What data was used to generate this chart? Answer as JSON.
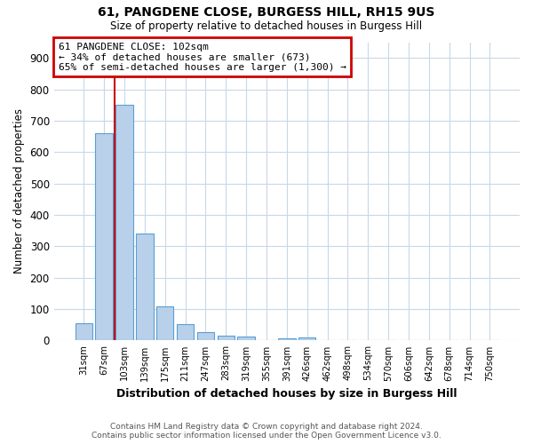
{
  "title": "61, PANGDENE CLOSE, BURGESS HILL, RH15 9US",
  "subtitle": "Size of property relative to detached houses in Burgess Hill",
  "xlabel": "Distribution of detached houses by size in Burgess Hill",
  "ylabel": "Number of detached properties",
  "footer_line1": "Contains HM Land Registry data © Crown copyright and database right 2024.",
  "footer_line2": "Contains public sector information licensed under the Open Government Licence v3.0.",
  "bar_labels": [
    "31sqm",
    "67sqm",
    "103sqm",
    "139sqm",
    "175sqm",
    "211sqm",
    "247sqm",
    "283sqm",
    "319sqm",
    "355sqm",
    "391sqm",
    "426sqm",
    "462sqm",
    "498sqm",
    "534sqm",
    "570sqm",
    "606sqm",
    "642sqm",
    "678sqm",
    "714sqm",
    "750sqm"
  ],
  "bar_values": [
    55,
    660,
    750,
    340,
    110,
    52,
    27,
    15,
    12,
    0,
    8,
    10,
    0,
    0,
    0,
    0,
    0,
    0,
    0,
    0,
    0
  ],
  "bar_color": "#b8d0ea",
  "bar_edge_color": "#5a9fd4",
  "bar_linewidth": 0.8,
  "property_line_x": 1.5,
  "property_line_color": "#cc0000",
  "ylim": [
    0,
    950
  ],
  "yticks": [
    0,
    100,
    200,
    300,
    400,
    500,
    600,
    700,
    800,
    900
  ],
  "annotation_line1": "61 PANGDENE CLOSE: 102sqm",
  "annotation_line2": "← 34% of detached houses are smaller (673)",
  "annotation_line3": "65% of semi-detached houses are larger (1,300) →",
  "annotation_box_color": "#cc0000",
  "annotation_fill": "white",
  "bg_color": "white",
  "grid_color": "#c8d8e8"
}
